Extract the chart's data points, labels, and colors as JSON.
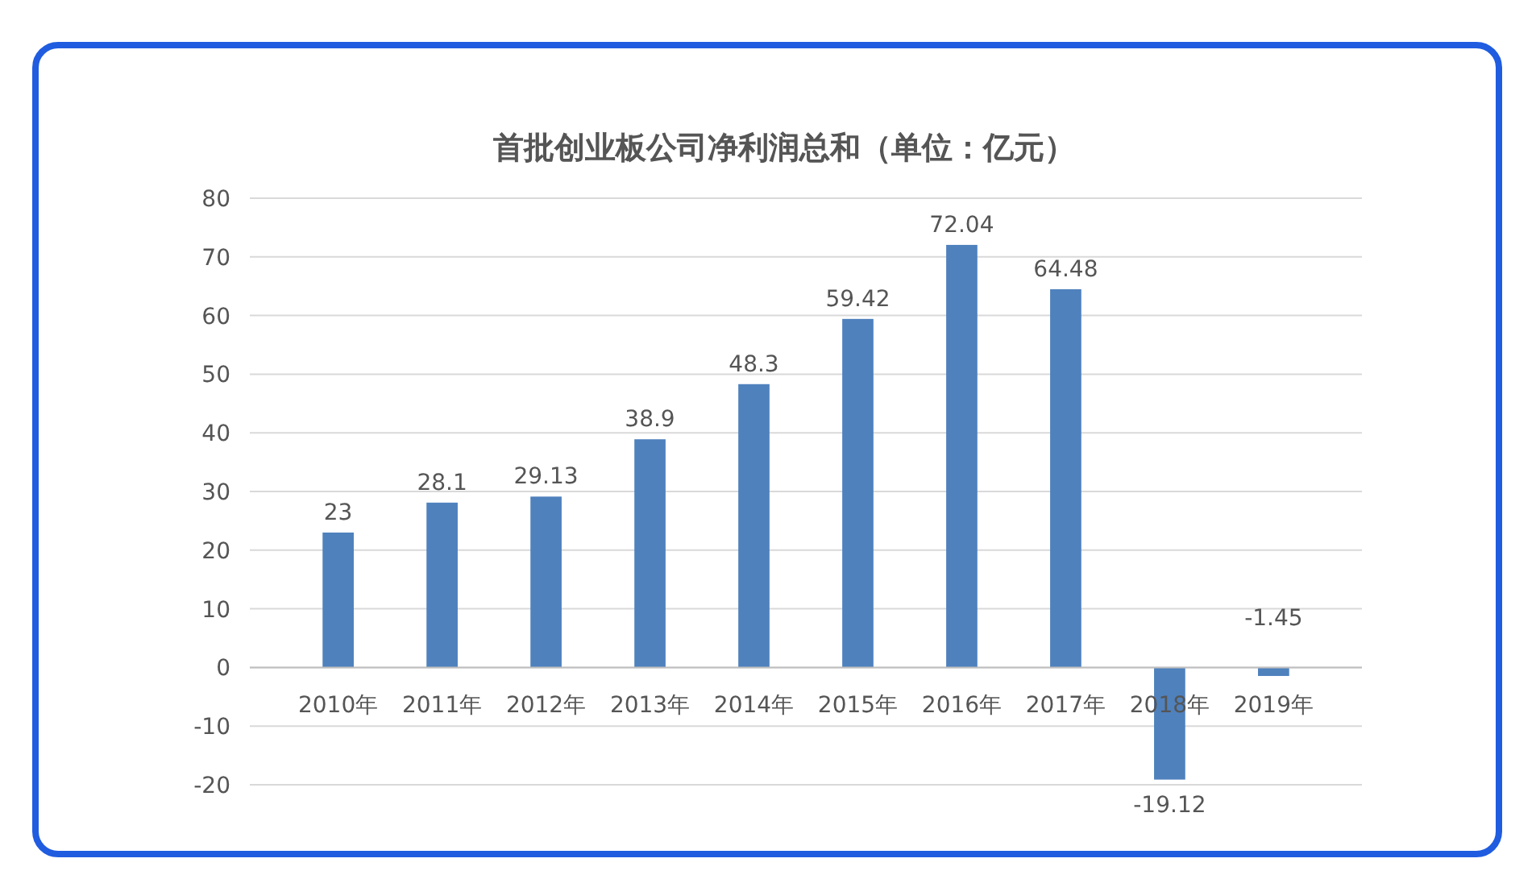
{
  "chart_data": {
    "type": "bar",
    "title": "首批创业板公司净利润总和（单位：亿元）",
    "categories": [
      "2010年",
      "2011年",
      "2012年",
      "2013年",
      "2014年",
      "2015年",
      "2016年",
      "2017年",
      "2018年",
      "2019年"
    ],
    "values": [
      23,
      28.1,
      29.13,
      38.9,
      48.3,
      59.42,
      72.04,
      64.48,
      -19.12,
      -1.45
    ],
    "color": "#4f81bd",
    "ylim": [
      -20,
      80
    ],
    "yticks": [
      -20,
      -10,
      0,
      10,
      20,
      30,
      40,
      50,
      60,
      70,
      80
    ],
    "grid": "y",
    "data_labels": true
  }
}
